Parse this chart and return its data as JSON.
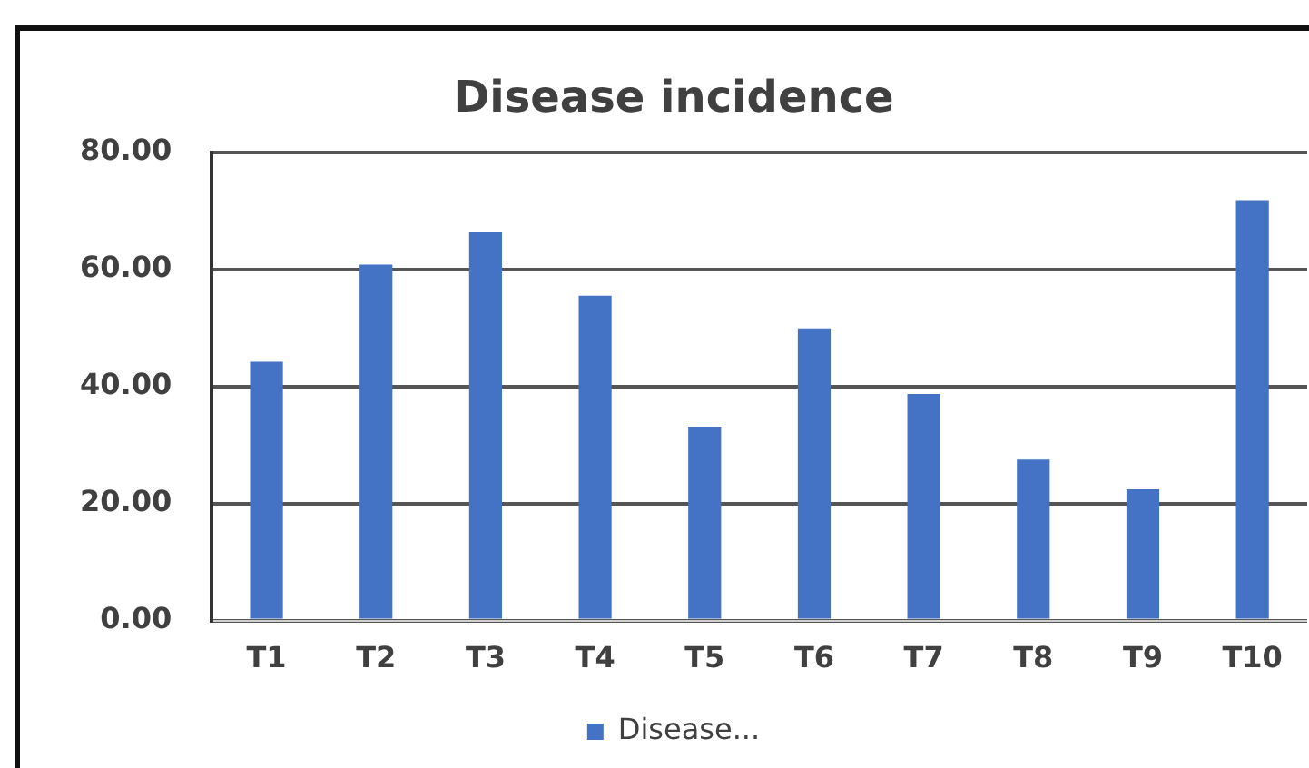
{
  "chart_data": {
    "type": "bar",
    "title": "Disease incidence",
    "categories": [
      "T1",
      "T2",
      "T3",
      "T4",
      "T5",
      "T6",
      "T7",
      "T8",
      "T9",
      "T10"
    ],
    "series": [
      {
        "name": "Disease...",
        "color": "#4472c4",
        "values": [
          44.2,
          60.8,
          66.3,
          55.5,
          33.1,
          49.9,
          38.7,
          27.5,
          22.4,
          71.8
        ]
      }
    ],
    "ylim": [
      0,
      80
    ],
    "yticks": [
      {
        "value": 0,
        "label": "0.00"
      },
      {
        "value": 20,
        "label": "20.00"
      },
      {
        "value": 40,
        "label": "40.00"
      },
      {
        "value": 60,
        "label": "60.00"
      },
      {
        "value": 80,
        "label": "80.00"
      }
    ],
    "grid": "y",
    "legend": "bottom"
  }
}
